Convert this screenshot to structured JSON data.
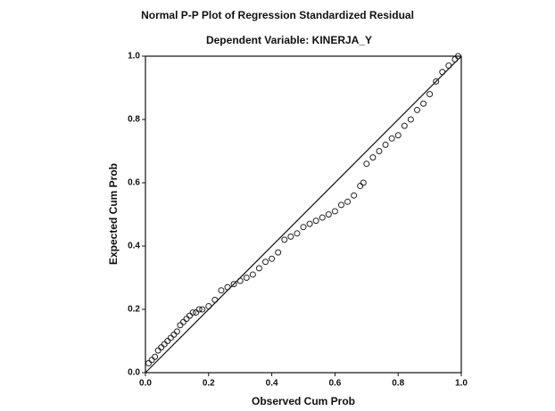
{
  "chart_data": {
    "type": "scatter",
    "title": "Normal P-P Plot of Regression Standardized Residual",
    "subtitle": "Dependent Variable: KINERJA_Y",
    "x_label": "Observed Cum Prob",
    "y_label": "Expected Cum Prob",
    "x": [
      0.01,
      0.02,
      0.03,
      0.04,
      0.05,
      0.06,
      0.07,
      0.08,
      0.09,
      0.1,
      0.11,
      0.12,
      0.13,
      0.14,
      0.15,
      0.16,
      0.17,
      0.18,
      0.2,
      0.22,
      0.24,
      0.26,
      0.28,
      0.3,
      0.32,
      0.34,
      0.36,
      0.38,
      0.4,
      0.42,
      0.44,
      0.46,
      0.48,
      0.5,
      0.52,
      0.54,
      0.56,
      0.58,
      0.6,
      0.62,
      0.64,
      0.66,
      0.68,
      0.69,
      0.7,
      0.72,
      0.74,
      0.76,
      0.78,
      0.8,
      0.82,
      0.84,
      0.86,
      0.88,
      0.9,
      0.92,
      0.94,
      0.96,
      0.98,
      0.99
    ],
    "values": [
      0.03,
      0.04,
      0.05,
      0.07,
      0.08,
      0.09,
      0.1,
      0.11,
      0.12,
      0.13,
      0.15,
      0.16,
      0.17,
      0.18,
      0.19,
      0.19,
      0.2,
      0.2,
      0.21,
      0.23,
      0.26,
      0.27,
      0.28,
      0.29,
      0.3,
      0.31,
      0.33,
      0.35,
      0.36,
      0.38,
      0.42,
      0.43,
      0.44,
      0.46,
      0.47,
      0.48,
      0.49,
      0.5,
      0.51,
      0.53,
      0.54,
      0.56,
      0.59,
      0.6,
      0.66,
      0.68,
      0.7,
      0.72,
      0.74,
      0.75,
      0.78,
      0.8,
      0.83,
      0.85,
      0.88,
      0.92,
      0.95,
      0.97,
      0.99,
      1.0
    ],
    "color": "#222222",
    "xlim": [
      0,
      1
    ],
    "ylim": [
      0,
      1
    ],
    "xticks": [
      {
        "value": 0,
        "label": "0.0"
      },
      0.2,
      0.4,
      0.6,
      0.8,
      {
        "value": 1,
        "label": "1.0"
      }
    ],
    "yticks": [
      {
        "value": 0,
        "label": "0.0"
      },
      0.2,
      0.4,
      0.6,
      0.8,
      {
        "value": 1,
        "label": "1.0"
      }
    ],
    "diagonal": true
  }
}
